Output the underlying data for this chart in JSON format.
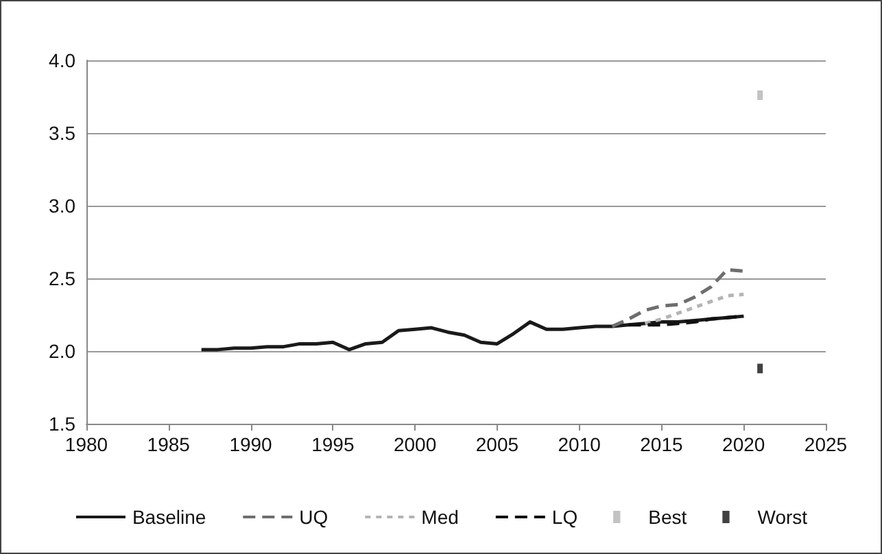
{
  "chart_data": {
    "type": "line",
    "x": [
      1987,
      1988,
      1989,
      1990,
      1991,
      1992,
      1993,
      1994,
      1995,
      1996,
      1997,
      1998,
      1999,
      2000,
      2001,
      2002,
      2003,
      2004,
      2005,
      2006,
      2007,
      2008,
      2009,
      2010,
      2011,
      2012,
      2013,
      2014,
      2015,
      2016,
      2017,
      2018,
      2019,
      2020
    ],
    "series": [
      {
        "name": "Baseline",
        "color": "#1a1a1a",
        "line_style": "solid",
        "values": [
          2.01,
          2.01,
          2.02,
          2.02,
          2.03,
          2.03,
          2.05,
          2.05,
          2.06,
          2.01,
          2.05,
          2.06,
          2.14,
          2.15,
          2.16,
          2.13,
          2.11,
          2.06,
          2.05,
          2.12,
          2.2,
          2.15,
          2.15,
          2.16,
          2.17,
          2.17,
          2.18,
          2.19,
          2.2,
          2.2,
          2.21,
          2.22,
          2.23,
          2.24
        ]
      },
      {
        "name": "UQ",
        "color": "#6e6e6e",
        "line_style": "dashed",
        "x": [
          2012,
          2013,
          2014,
          2015,
          2016,
          2017,
          2018,
          2019,
          2020
        ],
        "values": [
          2.17,
          2.22,
          2.28,
          2.31,
          2.32,
          2.37,
          2.44,
          2.56,
          2.55
        ]
      },
      {
        "name": "Med",
        "color": "#b4b4b4",
        "line_style": "dotted",
        "x": [
          2014,
          2015,
          2016,
          2017,
          2018,
          2019,
          2020
        ],
        "values": [
          2.19,
          2.22,
          2.26,
          2.3,
          2.34,
          2.38,
          2.39
        ]
      },
      {
        "name": "LQ",
        "color": "#111111",
        "line_style": "dashed",
        "x": [
          2013,
          2014,
          2015,
          2016,
          2017,
          2018,
          2019,
          2020
        ],
        "values": [
          2.18,
          2.18,
          2.18,
          2.19,
          2.2,
          2.22,
          2.23,
          2.24
        ]
      },
      {
        "name": "Best",
        "type": "scatter",
        "marker": "square",
        "color": "#b4b4b4",
        "x": [
          2021
        ],
        "values": [
          3.76
        ]
      },
      {
        "name": "Worst",
        "type": "scatter",
        "marker": "square",
        "color": "#111111",
        "x": [
          2021
        ],
        "values": [
          1.88
        ]
      }
    ],
    "xlim": [
      1980,
      2025
    ],
    "xticks": [
      1980,
      1985,
      1990,
      1995,
      2000,
      2005,
      2010,
      2015,
      2020,
      2025
    ],
    "ylim": [
      1.5,
      4
    ],
    "yticks": [
      {
        "value": 1.5,
        "label": "1.5"
      },
      {
        "value": 2,
        "label": "2.0"
      },
      {
        "value": 2.5,
        "label": "2.5"
      },
      {
        "value": 3,
        "label": "3.0"
      },
      {
        "value": 3.5,
        "label": "3.5"
      },
      {
        "value": 4,
        "label": "4.0"
      }
    ],
    "grid": "y",
    "legend": "bottom",
    "marker": "none"
  }
}
